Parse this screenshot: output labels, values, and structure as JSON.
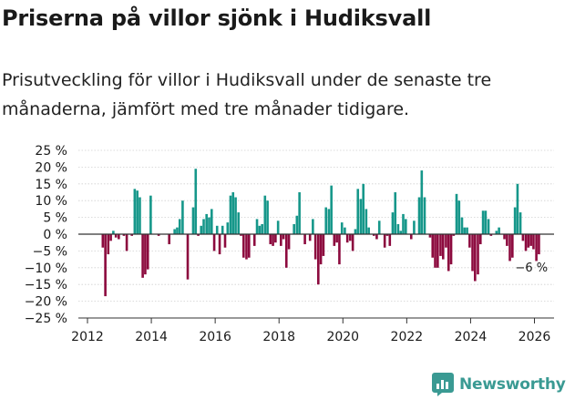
{
  "title": "Priserna på villor sjönk i Hudiksvall",
  "subtitle": "Prisutveckling för villor i Hudiksvall under de senaste tre månaderna, jämfört med tre månader tidigare.",
  "brand": "Newsworthy",
  "colors": {
    "positive": "#16978a",
    "negative": "#8c0a3e",
    "axis": "#333333",
    "text": "#1a1a1a",
    "brand": "#3a9a93"
  },
  "chart_data": {
    "type": "bar",
    "title": "",
    "xlabel": "",
    "ylabel": "",
    "ylim": [
      -25,
      25
    ],
    "yticks": [
      -25,
      -20,
      -15,
      -10,
      -5,
      0,
      5,
      10,
      15,
      20,
      25
    ],
    "ytick_labels": [
      "−25 %",
      "−20 %",
      "−15 %",
      "−10 %",
      "−5 %",
      "0 %",
      "5 %",
      "10 %",
      "15 %",
      "20 %",
      "25 %"
    ],
    "xlim": [
      2012,
      2026.7
    ],
    "xticks": [
      2012,
      2014,
      2016,
      2018,
      2020,
      2022,
      2024,
      2026
    ],
    "xtick_labels": [
      "2012",
      "2014",
      "2016",
      "2018",
      "2020",
      "2022",
      "2024",
      "2026"
    ],
    "annotation": {
      "label": "−6 %",
      "x": 2026.0,
      "y": -6
    },
    "series": [
      {
        "name": "Prisutveckling",
        "points": [
          [
            2012.48,
            -4
          ],
          [
            2012.56,
            -18.5
          ],
          [
            2012.65,
            -6
          ],
          [
            2012.73,
            -2
          ],
          [
            2012.81,
            1
          ],
          [
            2012.89,
            -1
          ],
          [
            2012.98,
            -1.5
          ],
          [
            2013.06,
            0
          ],
          [
            2013.14,
            -0.5
          ],
          [
            2013.23,
            -5
          ],
          [
            2013.31,
            0
          ],
          [
            2013.39,
            -0.5
          ],
          [
            2013.48,
            13.5
          ],
          [
            2013.56,
            13
          ],
          [
            2013.64,
            11
          ],
          [
            2013.73,
            -13
          ],
          [
            2013.81,
            -12
          ],
          [
            2013.89,
            -10.5
          ],
          [
            2013.98,
            11.5
          ],
          [
            2014.06,
            0
          ],
          [
            2014.14,
            0
          ],
          [
            2014.23,
            -0.5
          ],
          [
            2014.31,
            0
          ],
          [
            2014.39,
            0
          ],
          [
            2014.48,
            0
          ],
          [
            2014.56,
            -3
          ],
          [
            2014.64,
            0
          ],
          [
            2014.73,
            1.5
          ],
          [
            2014.81,
            2
          ],
          [
            2014.89,
            4.5
          ],
          [
            2014.98,
            10
          ],
          [
            2015.06,
            0
          ],
          [
            2015.14,
            -13.5
          ],
          [
            2015.23,
            0
          ],
          [
            2015.31,
            8
          ],
          [
            2015.39,
            19.5
          ],
          [
            2015.47,
            -0.5
          ],
          [
            2015.56,
            2.5
          ],
          [
            2015.64,
            4.5
          ],
          [
            2015.73,
            6
          ],
          [
            2015.81,
            5
          ],
          [
            2015.89,
            7.5
          ],
          [
            2015.97,
            -5
          ],
          [
            2016.06,
            2.5
          ],
          [
            2016.14,
            -6
          ],
          [
            2016.23,
            2.5
          ],
          [
            2016.31,
            -4
          ],
          [
            2016.39,
            3.5
          ],
          [
            2016.48,
            11.5
          ],
          [
            2016.56,
            12.5
          ],
          [
            2016.64,
            11
          ],
          [
            2016.73,
            6.5
          ],
          [
            2016.81,
            -0.5
          ],
          [
            2016.89,
            -7
          ],
          [
            2016.98,
            -7.5
          ],
          [
            2017.06,
            -7
          ],
          [
            2017.14,
            0
          ],
          [
            2017.23,
            -3.5
          ],
          [
            2017.31,
            4.5
          ],
          [
            2017.39,
            2.5
          ],
          [
            2017.47,
            3
          ],
          [
            2017.56,
            11.5
          ],
          [
            2017.64,
            10
          ],
          [
            2017.73,
            -3
          ],
          [
            2017.81,
            -3.5
          ],
          [
            2017.89,
            -2.5
          ],
          [
            2017.97,
            4
          ],
          [
            2018.06,
            -3.5
          ],
          [
            2018.14,
            -1.5
          ],
          [
            2018.23,
            -10
          ],
          [
            2018.31,
            -4.5
          ],
          [
            2018.39,
            0
          ],
          [
            2018.47,
            3
          ],
          [
            2018.56,
            5.5
          ],
          [
            2018.64,
            12.5
          ],
          [
            2018.73,
            0
          ],
          [
            2018.81,
            -3
          ],
          [
            2018.89,
            0
          ],
          [
            2018.97,
            -2
          ],
          [
            2019.06,
            4.5
          ],
          [
            2019.14,
            -7.5
          ],
          [
            2019.23,
            -15
          ],
          [
            2019.31,
            -9
          ],
          [
            2019.39,
            -6.5
          ],
          [
            2019.47,
            8
          ],
          [
            2019.56,
            7.5
          ],
          [
            2019.64,
            14.5
          ],
          [
            2019.73,
            -3.5
          ],
          [
            2019.81,
            -2.5
          ],
          [
            2019.89,
            -9
          ],
          [
            2019.97,
            3.5
          ],
          [
            2020.06,
            2
          ],
          [
            2020.14,
            -2.5
          ],
          [
            2020.23,
            -2
          ],
          [
            2020.31,
            -5
          ],
          [
            2020.39,
            1.5
          ],
          [
            2020.47,
            13.5
          ],
          [
            2020.56,
            10.5
          ],
          [
            2020.64,
            15
          ],
          [
            2020.73,
            7.5
          ],
          [
            2020.81,
            2
          ],
          [
            2020.89,
            0
          ],
          [
            2020.97,
            -0.5
          ],
          [
            2021.06,
            -1.5
          ],
          [
            2021.14,
            4
          ],
          [
            2021.23,
            0
          ],
          [
            2021.31,
            -4
          ],
          [
            2021.39,
            -0.5
          ],
          [
            2021.47,
            -3.5
          ],
          [
            2021.56,
            6.5
          ],
          [
            2021.64,
            12.5
          ],
          [
            2021.73,
            3
          ],
          [
            2021.81,
            1
          ],
          [
            2021.89,
            6
          ],
          [
            2021.97,
            4.5
          ],
          [
            2022.06,
            0
          ],
          [
            2022.14,
            -1.5
          ],
          [
            2022.23,
            4
          ],
          [
            2022.31,
            0
          ],
          [
            2022.39,
            11
          ],
          [
            2022.47,
            19
          ],
          [
            2022.56,
            11
          ],
          [
            2022.64,
            0
          ],
          [
            2022.73,
            -1
          ],
          [
            2022.81,
            -7
          ],
          [
            2022.89,
            -10
          ],
          [
            2022.97,
            -10
          ],
          [
            2023.06,
            -6.5
          ],
          [
            2023.14,
            -7.5
          ],
          [
            2023.23,
            -4
          ],
          [
            2023.31,
            -11
          ],
          [
            2023.39,
            -9
          ],
          [
            2023.47,
            -0.5
          ],
          [
            2023.56,
            12
          ],
          [
            2023.64,
            10
          ],
          [
            2023.73,
            5
          ],
          [
            2023.81,
            2
          ],
          [
            2023.89,
            2
          ],
          [
            2023.97,
            -4
          ],
          [
            2024.06,
            -11
          ],
          [
            2024.14,
            -14
          ],
          [
            2024.23,
            -12
          ],
          [
            2024.31,
            -3
          ],
          [
            2024.39,
            7
          ],
          [
            2024.47,
            7
          ],
          [
            2024.56,
            4.5
          ],
          [
            2024.64,
            -0.5
          ],
          [
            2024.73,
            0
          ],
          [
            2024.81,
            1
          ],
          [
            2024.89,
            2
          ],
          [
            2024.97,
            0
          ],
          [
            2025.06,
            -1.5
          ],
          [
            2025.14,
            -3.5
          ],
          [
            2025.23,
            -8
          ],
          [
            2025.31,
            -7
          ],
          [
            2025.39,
            8
          ],
          [
            2025.47,
            15
          ],
          [
            2025.56,
            6.5
          ],
          [
            2025.64,
            -2
          ],
          [
            2025.73,
            -5
          ],
          [
            2025.81,
            -4
          ],
          [
            2025.89,
            -3.5
          ],
          [
            2025.97,
            -4.5
          ],
          [
            2026.06,
            -8
          ],
          [
            2026.14,
            -6
          ]
        ]
      }
    ]
  }
}
